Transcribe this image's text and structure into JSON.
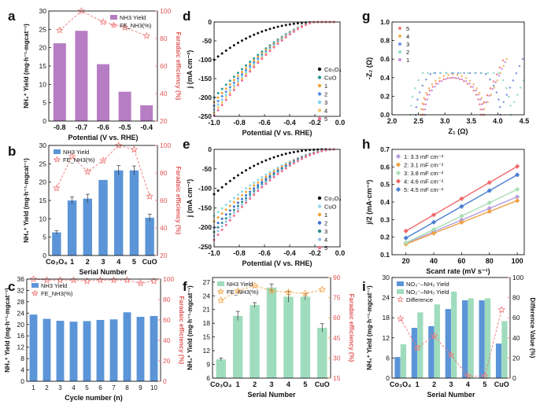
{
  "chart_data": [
    {
      "panel": "a",
      "type": "bar+line",
      "categories": [
        "-0.8",
        "-0.7",
        "-0.6",
        "-0.5",
        "-0.4"
      ],
      "series": [
        {
          "name": "NH3 Yield",
          "axis": "left",
          "values": [
            21.2,
            24.6,
            15.5,
            8.0,
            4.3
          ],
          "color": "#b77dc4"
        },
        {
          "name": "FE_NH3(%)",
          "axis": "right",
          "values": [
            86,
            100,
            92,
            88,
            82
          ],
          "color": "#f07878"
        }
      ],
      "xlabel": "Potential (V vs. RHE)",
      "ylabel": "NH₄⁺ Yield (mg·h⁻¹·mgcat⁻¹)",
      "y2label": "Faradaic efficiency (%)",
      "ylim": [
        0,
        30
      ],
      "yticks": [
        "0",
        "5",
        "10",
        "15",
        "20",
        "25",
        "30"
      ],
      "y2lim": [
        20,
        100
      ],
      "y2ticks": [
        "20",
        "40",
        "60",
        "80",
        "100"
      ]
    },
    {
      "panel": "b",
      "type": "bar+line",
      "categories": [
        "Co3O4",
        "1",
        "2",
        "3",
        "4",
        "5",
        "CuO"
      ],
      "series": [
        {
          "name": "NH3 Yield",
          "axis": "left",
          "values": [
            6.3,
            15.0,
            15.5,
            20.6,
            23.2,
            23.2,
            10.3
          ],
          "errors": [
            0.5,
            1.0,
            1.2,
            0,
            1.3,
            1.2,
            1.0
          ],
          "color": "#5b95d8"
        },
        {
          "name": "FE_NH3(%)",
          "axis": "right",
          "values": [
            69,
            92,
            81,
            89,
            100,
            97,
            63
          ],
          "color": "#f07878"
        }
      ],
      "xlabel": "Serial Number",
      "ylabel": "NH₄⁺ Yield (mg·h⁻¹·mgcat⁻¹)",
      "y2label": "Faradaic efficiency (%)",
      "ylim": [
        0,
        30
      ],
      "yticks": [
        "0",
        "5",
        "10",
        "15",
        "20",
        "25",
        "30"
      ],
      "y2lim": [
        20,
        100
      ],
      "y2ticks": [
        "20",
        "40",
        "60",
        "80",
        "100"
      ]
    },
    {
      "panel": "c",
      "type": "bar+line",
      "categories": [
        "1",
        "2",
        "3",
        "4",
        "5",
        "6",
        "7",
        "8",
        "9",
        "10"
      ],
      "series": [
        {
          "name": "NH3 Yield",
          "axis": "left",
          "values": [
            23.5,
            22.0,
            21.3,
            21.0,
            21.2,
            21.6,
            21.8,
            24.3,
            22.7,
            23.0
          ],
          "color": "#5b95d8"
        },
        {
          "name": "FE_NH3(%)",
          "axis": "right",
          "values": [
            100,
            99,
            99,
            99,
            98,
            99,
            99,
            99,
            96,
            98
          ],
          "color": "#f07878"
        }
      ],
      "xlabel": "Cycle number (n)",
      "ylabel": "NH₄⁺ Yield (mg·h⁻¹·mgcat⁻¹)",
      "y2label": "Faradaic efficiency (%)",
      "ylim": [
        0,
        36
      ],
      "yticks": [
        "0",
        "4",
        "8",
        "12",
        "16",
        "20",
        "24",
        "28",
        "32",
        "36"
      ],
      "y2lim": [
        0,
        100
      ],
      "y2ticks": [
        "0",
        "20",
        "40",
        "60",
        "80",
        "100"
      ]
    },
    {
      "panel": "d",
      "type": "scatter",
      "xlabel": "Potential (V vs. RHE)",
      "ylabel": "j (mA cm⁻²)",
      "xlim": [
        -1.0,
        0.0
      ],
      "xticks": [
        "-1.0",
        "-0.8",
        "-0.6",
        "-0.4",
        "-0.2",
        "0.0"
      ],
      "ylim": [
        -250,
        0
      ],
      "yticks": [
        "-250",
        "-200",
        "-150",
        "-100",
        "-50",
        "0"
      ],
      "legend": [
        "Co3O4",
        "CuO",
        "1",
        "2",
        "3",
        "4",
        "5"
      ],
      "series": [
        {
          "name": "Co3O4",
          "color": "#111111",
          "marker": "circle",
          "jmax": -100,
          "onset": -0.1,
          "power": 2.5
        },
        {
          "name": "CuO",
          "color": "#2a9c9c",
          "marker": "circle",
          "jmax": -200,
          "onset": -0.2,
          "power": 1.45
        },
        {
          "name": "1",
          "color": "#f2a33a",
          "marker": "circle",
          "jmax": -212,
          "onset": -0.2,
          "power": 1.45
        },
        {
          "name": "2",
          "color": "#4c8fe0",
          "marker": "circle",
          "jmax": -222,
          "onset": -0.2,
          "power": 1.45
        },
        {
          "name": "3",
          "color": "#7fd1f0",
          "marker": "circle",
          "jmax": -232,
          "onset": -0.2,
          "power": 1.45
        },
        {
          "name": "4",
          "color": "#f5c86a",
          "marker": "circle",
          "jmax": -240,
          "onset": -0.2,
          "power": 1.45
        },
        {
          "name": "5",
          "color": "#ef6f8e",
          "marker": "circle",
          "jmax": -248,
          "onset": -0.2,
          "power": 1.45
        }
      ]
    },
    {
      "panel": "e",
      "type": "scatter",
      "xlabel": "Potential (V vs. RHE)",
      "ylabel": "j (mA cm⁻²)",
      "xlim": [
        -1.0,
        0.0
      ],
      "xticks": [
        "-1.0",
        "-0.8",
        "-0.6",
        "-0.4",
        "-0.2",
        "0.0"
      ],
      "ylim": [
        -250,
        0
      ],
      "yticks": [
        "-250",
        "-200",
        "-150",
        "-100",
        "-50",
        "0"
      ],
      "legend": [
        "Co3O4",
        "CuO",
        "1",
        "2",
        "3",
        "4",
        "5"
      ],
      "series": [
        {
          "name": "Co3O4",
          "color": "#111111",
          "marker": "circle",
          "jmax": -115,
          "onset": -0.1,
          "power": 2.3
        },
        {
          "name": "CuO",
          "color": "#8fd8e8",
          "marker": "circle",
          "jmax": -170,
          "onset": -0.05,
          "power": 1.7
        },
        {
          "name": "1",
          "color": "#f2a33a",
          "marker": "circle",
          "jmax": -185,
          "onset": -0.05,
          "power": 1.7
        },
        {
          "name": "2",
          "color": "#3a6fd0",
          "marker": "circle",
          "jmax": -200,
          "onset": -0.05,
          "power": 1.7
        },
        {
          "name": "3",
          "color": "#2e8c8c",
          "marker": "circle",
          "jmax": -212,
          "onset": -0.05,
          "power": 1.7
        },
        {
          "name": "4",
          "color": "#9bc0ec",
          "marker": "circle",
          "jmax": -222,
          "onset": -0.05,
          "power": 1.7
        },
        {
          "name": "5",
          "color": "#ef6f8e",
          "marker": "circle",
          "jmax": -232,
          "onset": -0.05,
          "power": 1.7
        }
      ]
    },
    {
      "panel": "f",
      "type": "bar+line",
      "categories": [
        "Co3O4",
        "1",
        "2",
        "3",
        "4",
        "5",
        "CuO"
      ],
      "series": [
        {
          "name": "NH3 Yield",
          "axis": "left",
          "values": [
            10.1,
            19.6,
            22.0,
            25.8,
            23.8,
            23.8,
            17.0
          ],
          "errors": [
            0.3,
            1.0,
            0.5,
            0.8,
            1.2,
            0.7,
            0.9
          ],
          "color": "#9fdcbd"
        },
        {
          "name": "FE_NH3(%)",
          "axis": "right",
          "values": [
            73,
            80,
            84,
            80,
            79,
            78,
            81
          ],
          "color": "#f5a342"
        }
      ],
      "xlabel": "Serial Number",
      "ylabel": "NH₄⁺ Yield (mg·h⁻¹·mgcat⁻¹)",
      "y2label": "Faradaic efficiency (%)",
      "ylim": [
        6,
        28
      ],
      "yticks": [
        "6",
        "9",
        "12",
        "15",
        "18",
        "21",
        "24",
        "27"
      ],
      "y2lim": [
        15,
        90
      ],
      "y2ticks": [
        "15",
        "30",
        "45",
        "60",
        "75",
        "90"
      ]
    },
    {
      "panel": "g",
      "type": "scatter",
      "xlabel": "Z₁ (Ω)",
      "ylabel": "-Z₂ (Ω)",
      "xlim": [
        2.0,
        4.5
      ],
      "xticks": [
        "2.0",
        "2.5",
        "3.0",
        "3.5",
        "4.0",
        "4.5"
      ],
      "ylim": [
        0.0,
        1.0
      ],
      "yticks": [
        "0.0",
        "0.2",
        "0.4",
        "0.6",
        "0.8",
        "1.0"
      ],
      "legend": [
        "5",
        "4",
        "3",
        "2",
        "1"
      ],
      "series": [
        {
          "name": "5",
          "color": "#f07b7b",
          "marker": "circle",
          "r0": 2.58,
          "r1": 3.68,
          "tail": 0.6
        },
        {
          "name": "4",
          "color": "#f3b25a",
          "marker": "circle",
          "r0": 2.55,
          "r1": 3.75,
          "tail": 0.62
        },
        {
          "name": "3",
          "color": "#7a90e0",
          "marker": "circle",
          "r0": 2.45,
          "r1": 4.05,
          "tail": 0.62
        },
        {
          "name": "2",
          "color": "#8fd8c8",
          "marker": "circle",
          "r0": 2.35,
          "r1": 4.25,
          "tail": 0.62
        },
        {
          "name": "1",
          "color": "#c88de0",
          "marker": "circle",
          "r0": 2.62,
          "r1": 3.72,
          "tail": 0.58
        }
      ]
    },
    {
      "panel": "h",
      "type": "scatter+fit",
      "xlabel": "Scant rate (mV s⁻¹)",
      "ylabel": "j/2 (mA·cm⁻²)",
      "x": [
        20,
        40,
        60,
        80,
        100
      ],
      "xlim": [
        10,
        105
      ],
      "xticks": [
        "20",
        "40",
        "60",
        "80",
        "100"
      ],
      "ylim": [
        0.1,
        0.7
      ],
      "yticks": [
        "0.1",
        "0.2",
        "0.3",
        "0.4",
        "0.5",
        "0.6",
        "0.7"
      ],
      "series": [
        {
          "name": "1: 3.3 mF cm⁻²",
          "color": "#b39ddb",
          "values": [
            0.165,
            0.232,
            0.298,
            0.364,
            0.43
          ]
        },
        {
          "name": "2: 3.1 mF cm⁻²",
          "color": "#f0a041",
          "values": [
            0.16,
            0.222,
            0.284,
            0.346,
            0.408
          ]
        },
        {
          "name": "3: 3.8 mF cm⁻²",
          "color": "#a9dfb5",
          "values": [
            0.168,
            0.244,
            0.32,
            0.396,
            0.472
          ]
        },
        {
          "name": "4: 4.6 mF cm⁻²",
          "color": "#ef6a6a",
          "values": [
            0.235,
            0.327,
            0.419,
            0.511,
            0.603
          ]
        },
        {
          "name": "5: 4.5 mF cm⁻²",
          "color": "#4a7fd0",
          "values": [
            0.195,
            0.285,
            0.375,
            0.465,
            0.555
          ]
        }
      ]
    },
    {
      "panel": "i",
      "type": "grouped-bar+line",
      "categories": [
        "Co3O4",
        "1",
        "2",
        "3",
        "4",
        "5",
        "CuO"
      ],
      "series": [
        {
          "name": "NO₃⁻–NH₃ Yield",
          "axis": "left",
          "values": [
            6.3,
            15.0,
            15.5,
            20.6,
            23.2,
            23.2,
            10.3
          ],
          "color": "#5b95d8"
        },
        {
          "name": "NO₂⁻–NH₃ Yield",
          "axis": "left",
          "values": [
            10.1,
            19.6,
            22.0,
            25.8,
            23.8,
            23.8,
            17.0
          ],
          "color": "#9fdcbd"
        },
        {
          "name": "Difference",
          "axis": "right",
          "values": [
            59,
            30,
            42,
            23,
            2,
            2,
            68
          ],
          "color": "#f07878"
        }
      ],
      "xlabel": "Serial Number",
      "ylabel": "NH₄⁺ Yield (mg·h⁻¹·mgcat⁻¹)",
      "y2label": "Difference Value (%)",
      "ylim": [
        0,
        30
      ],
      "yticks": [
        "0",
        "6",
        "12",
        "18",
        "24",
        "30"
      ],
      "y2lim": [
        0,
        100
      ],
      "y2ticks": [
        "0",
        "20",
        "40",
        "60",
        "80",
        "100"
      ]
    }
  ]
}
